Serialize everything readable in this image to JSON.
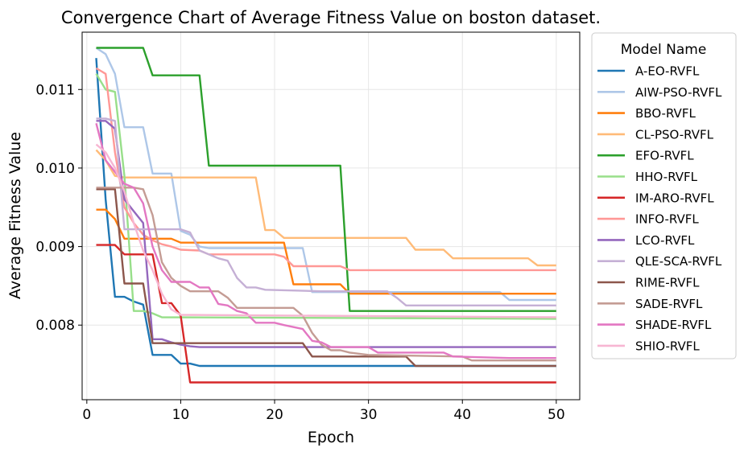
{
  "chart_data": {
    "type": "line",
    "title": "Convergence Chart of Average Fitness Value on boston dataset.",
    "xlabel": "Epoch",
    "ylabel": "Average Fitness Value",
    "xlim": [
      -0.5,
      52.5
    ],
    "ylim": [
      0.00705,
      0.01173
    ],
    "x_ticks": [
      0,
      10,
      20,
      30,
      40,
      50
    ],
    "y_ticks": [
      0.008,
      0.009,
      0.01,
      0.011
    ],
    "y_tick_labels": [
      "0.008",
      "0.009",
      "0.010",
      "0.011"
    ],
    "grid": true,
    "legend": {
      "title": "Model Name",
      "placement": "outside-right"
    },
    "series": [
      {
        "name": "A-EO-RVFL",
        "color": "#1f77b4",
        "points": [
          [
            1,
            0.0114
          ],
          [
            2,
            0.0096
          ],
          [
            3,
            0.00836
          ],
          [
            4,
            0.00836
          ],
          [
            5,
            0.0083
          ],
          [
            6,
            0.00826
          ],
          [
            7,
            0.00762
          ],
          [
            9,
            0.00762
          ],
          [
            10,
            0.00751
          ],
          [
            11,
            0.00751
          ],
          [
            12,
            0.00748
          ],
          [
            50,
            0.00748
          ]
        ]
      },
      {
        "name": "AIW-PSO-RVFL",
        "color": "#aec7e8",
        "points": [
          [
            1,
            0.01153
          ],
          [
            2,
            0.01145
          ],
          [
            3,
            0.0112
          ],
          [
            4,
            0.01052
          ],
          [
            6,
            0.01052
          ],
          [
            7,
            0.00993
          ],
          [
            9,
            0.00993
          ],
          [
            10,
            0.0092
          ],
          [
            11,
            0.00915
          ],
          [
            12,
            0.009
          ],
          [
            13,
            0.00898
          ],
          [
            23,
            0.00898
          ],
          [
            24,
            0.00842
          ],
          [
            44,
            0.00842
          ],
          [
            45,
            0.00832
          ],
          [
            50,
            0.00832
          ]
        ]
      },
      {
        "name": "BBO-RVFL",
        "color": "#ff7f0e",
        "points": [
          [
            1,
            0.00947
          ],
          [
            2,
            0.00947
          ],
          [
            3,
            0.00935
          ],
          [
            4,
            0.0091
          ],
          [
            9,
            0.0091
          ],
          [
            10,
            0.00905
          ],
          [
            21,
            0.00905
          ],
          [
            22,
            0.00852
          ],
          [
            27,
            0.00852
          ],
          [
            28,
            0.0084
          ],
          [
            50,
            0.0084
          ]
        ]
      },
      {
        "name": "CL-PSO-RVFL",
        "color": "#ffbb78",
        "points": [
          [
            1,
            0.01023
          ],
          [
            2,
            0.0101
          ],
          [
            3,
            0.0099
          ],
          [
            4,
            0.00988
          ],
          [
            18,
            0.00988
          ],
          [
            19,
            0.00921
          ],
          [
            20,
            0.00921
          ],
          [
            21,
            0.00911
          ],
          [
            34,
            0.00911
          ],
          [
            35,
            0.00896
          ],
          [
            38,
            0.00896
          ],
          [
            39,
            0.00885
          ],
          [
            47,
            0.00885
          ],
          [
            48,
            0.00876
          ],
          [
            50,
            0.00876
          ]
        ]
      },
      {
        "name": "EFO-RVFL",
        "color": "#2ca02c",
        "points": [
          [
            1,
            0.01153
          ],
          [
            6,
            0.01153
          ],
          [
            7,
            0.01118
          ],
          [
            12,
            0.01118
          ],
          [
            13,
            0.01003
          ],
          [
            27,
            0.01003
          ],
          [
            28,
            0.00818
          ],
          [
            50,
            0.00818
          ]
        ]
      },
      {
        "name": "HHO-RVFL",
        "color": "#98df8a",
        "points": [
          [
            1,
            0.0112
          ],
          [
            2,
            0.011
          ],
          [
            3,
            0.01097
          ],
          [
            4,
            0.0099
          ],
          [
            5,
            0.00818
          ],
          [
            6,
            0.00818
          ],
          [
            7,
            0.00815
          ],
          [
            8,
            0.0081
          ],
          [
            50,
            0.00808
          ]
        ]
      },
      {
        "name": "IM-ARO-RVFL",
        "color": "#d62728",
        "points": [
          [
            1,
            0.00902
          ],
          [
            3,
            0.00902
          ],
          [
            4,
            0.0089
          ],
          [
            7,
            0.0089
          ],
          [
            8,
            0.00828
          ],
          [
            9,
            0.00828
          ],
          [
            10,
            0.00812
          ],
          [
            11,
            0.00727
          ],
          [
            50,
            0.00727
          ]
        ]
      },
      {
        "name": "INFO-RVFL",
        "color": "#ff9896",
        "points": [
          [
            1,
            0.01127
          ],
          [
            2,
            0.0112
          ],
          [
            3,
            0.0102
          ],
          [
            4,
            0.0095
          ],
          [
            5,
            0.0093
          ],
          [
            6,
            0.00915
          ],
          [
            7,
            0.00908
          ],
          [
            8,
            0.00903
          ],
          [
            9,
            0.009
          ],
          [
            10,
            0.00896
          ],
          [
            12,
            0.00895
          ],
          [
            13,
            0.0089
          ],
          [
            20,
            0.0089
          ],
          [
            21,
            0.00887
          ],
          [
            22,
            0.00875
          ],
          [
            27,
            0.00875
          ],
          [
            28,
            0.0087
          ],
          [
            50,
            0.0087
          ]
        ]
      },
      {
        "name": "LCO-RVFL",
        "color": "#9467bd",
        "points": [
          [
            1,
            0.0106
          ],
          [
            2,
            0.0106
          ],
          [
            3,
            0.0105
          ],
          [
            4,
            0.0096
          ],
          [
            5,
            0.00945
          ],
          [
            6,
            0.0093
          ],
          [
            7,
            0.00782
          ],
          [
            8,
            0.00782
          ],
          [
            9,
            0.00778
          ],
          [
            10,
            0.00775
          ],
          [
            11,
            0.00773
          ],
          [
            12,
            0.00772
          ],
          [
            50,
            0.00772
          ]
        ]
      },
      {
        "name": "QLE-SCA-RVFL",
        "color": "#c5b0d5",
        "points": [
          [
            1,
            0.01063
          ],
          [
            2,
            0.01063
          ],
          [
            3,
            0.0106
          ],
          [
            4,
            0.00922
          ],
          [
            6,
            0.00922
          ],
          [
            10,
            0.00922
          ],
          [
            11,
            0.00918
          ],
          [
            12,
            0.00895
          ],
          [
            13,
            0.0089
          ],
          [
            14,
            0.00885
          ],
          [
            15,
            0.00882
          ],
          [
            16,
            0.0086
          ],
          [
            17,
            0.00848
          ],
          [
            18,
            0.00848
          ],
          [
            19,
            0.00845
          ],
          [
            25,
            0.00843
          ],
          [
            32,
            0.00843
          ],
          [
            33,
            0.00835
          ],
          [
            34,
            0.00825
          ],
          [
            50,
            0.00825
          ]
        ]
      },
      {
        "name": "RIME-RVFL",
        "color": "#8c564b",
        "points": [
          [
            1,
            0.00973
          ],
          [
            3,
            0.00973
          ],
          [
            4,
            0.00853
          ],
          [
            6,
            0.00853
          ],
          [
            7,
            0.00777
          ],
          [
            23,
            0.00777
          ],
          [
            24,
            0.0076
          ],
          [
            34,
            0.0076
          ],
          [
            35,
            0.00748
          ],
          [
            50,
            0.00748
          ]
        ]
      },
      {
        "name": "SADE-RVFL",
        "color": "#c49c94",
        "points": [
          [
            1,
            0.00975
          ],
          [
            5,
            0.00975
          ],
          [
            6,
            0.00973
          ],
          [
            7,
            0.0094
          ],
          [
            8,
            0.0088
          ],
          [
            9,
            0.0086
          ],
          [
            10,
            0.0085
          ],
          [
            11,
            0.00843
          ],
          [
            14,
            0.00843
          ],
          [
            15,
            0.00835
          ],
          [
            16,
            0.00822
          ],
          [
            22,
            0.00822
          ],
          [
            23,
            0.00812
          ],
          [
            24,
            0.0079
          ],
          [
            25,
            0.00775
          ],
          [
            26,
            0.00768
          ],
          [
            27,
            0.00768
          ],
          [
            28,
            0.00765
          ],
          [
            30,
            0.00762
          ],
          [
            40,
            0.0076
          ],
          [
            41,
            0.00755
          ],
          [
            50,
            0.00755
          ]
        ]
      },
      {
        "name": "SHADE-RVFL",
        "color": "#e377c2",
        "points": [
          [
            1,
            0.01057
          ],
          [
            2,
            0.0101
          ],
          [
            3,
            0.00995
          ],
          [
            4,
            0.0098
          ],
          [
            5,
            0.00975
          ],
          [
            6,
            0.00955
          ],
          [
            7,
            0.009
          ],
          [
            8,
            0.0087
          ],
          [
            9,
            0.00855
          ],
          [
            11,
            0.00855
          ],
          [
            12,
            0.00848
          ],
          [
            13,
            0.00848
          ],
          [
            14,
            0.00827
          ],
          [
            15,
            0.00825
          ],
          [
            16,
            0.00818
          ],
          [
            17,
            0.00815
          ],
          [
            18,
            0.00803
          ],
          [
            20,
            0.00803
          ],
          [
            21,
            0.008
          ],
          [
            23,
            0.00795
          ],
          [
            24,
            0.0078
          ],
          [
            25,
            0.00778
          ],
          [
            26,
            0.00772
          ],
          [
            30,
            0.00772
          ],
          [
            31,
            0.00765
          ],
          [
            38,
            0.00765
          ],
          [
            39,
            0.0076
          ],
          [
            45,
            0.00758
          ],
          [
            50,
            0.00758
          ]
        ]
      },
      {
        "name": "SHIO-RVFL",
        "color": "#f7b6d2",
        "points": [
          [
            1,
            0.0103
          ],
          [
            2,
            0.0102
          ],
          [
            3,
            0.01
          ],
          [
            4,
            0.0097
          ],
          [
            5,
            0.0093
          ],
          [
            6,
            0.00895
          ],
          [
            7,
            0.0087
          ],
          [
            8,
            0.0084
          ],
          [
            9,
            0.0082
          ],
          [
            10,
            0.00813
          ],
          [
            50,
            0.0081
          ]
        ]
      }
    ]
  }
}
